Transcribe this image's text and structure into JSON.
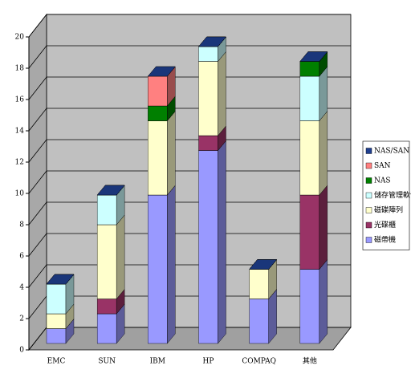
{
  "chart_data": {
    "type": "stacked-bar-3d",
    "categories": [
      "EMC",
      "SUN",
      "IBM",
      "HP",
      "COMPAQ",
      "其他"
    ],
    "series": [
      {
        "name": "磁帶機",
        "color": "#9999ff",
        "values": [
          1,
          2,
          10,
          13,
          3,
          5
        ]
      },
      {
        "name": "光碟櫃",
        "color": "#993366",
        "values": [
          0,
          1,
          0,
          1,
          0,
          5
        ]
      },
      {
        "name": "磁碟陣列",
        "color": "#ffffcc",
        "values": [
          1,
          5,
          5,
          5,
          2,
          5
        ]
      },
      {
        "name": "儲存管理軟體",
        "color": "#ccffff",
        "values": [
          2,
          2,
          0,
          1,
          0,
          3
        ]
      },
      {
        "name": "NAS",
        "color": "#007f00",
        "values": [
          0,
          0,
          1,
          0,
          0,
          1
        ]
      },
      {
        "name": "SAN",
        "color": "#ff8080",
        "values": [
          0,
          0,
          2,
          0,
          0,
          0
        ]
      },
      {
        "name": "NAS/SAN",
        "color": "#1f3f8f",
        "values": [
          0,
          0,
          0,
          0,
          0,
          0
        ]
      }
    ],
    "ylim": [
      0,
      20
    ],
    "yticks": [
      0,
      2,
      4,
      6,
      8,
      10,
      12,
      14,
      16,
      18,
      20
    ],
    "grid": true,
    "legend": "right"
  }
}
